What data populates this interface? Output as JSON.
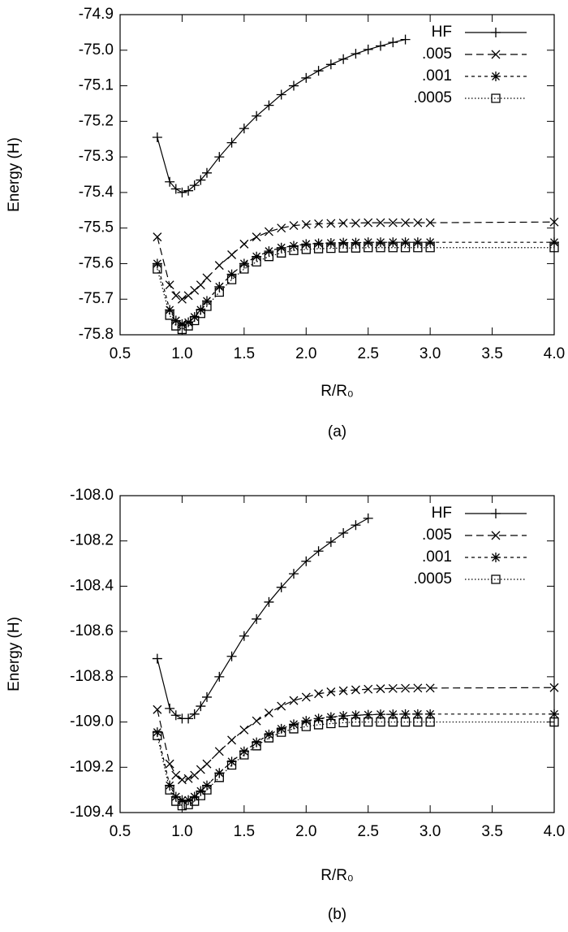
{
  "chart_data": [
    {
      "type": "line",
      "caption": "(a)",
      "xlabel": "R/R₀",
      "ylabel": "Energy (H)",
      "xlim": [
        0.5,
        4.0
      ],
      "xticks": [
        0.5,
        {
          "value": 1,
          "label": "1.0"
        },
        1.5,
        {
          "value": 2,
          "label": "2.0"
        },
        2.5,
        {
          "value": 3,
          "label": "3.0"
        },
        3.5,
        {
          "value": 4,
          "label": "4.0"
        }
      ],
      "ylim": [
        -75.8,
        -74.9
      ],
      "yticks": [
        -75.8,
        -75.7,
        -75.6,
        -75.5,
        -75.4,
        -75.3,
        -75.2,
        -75.1,
        {
          "value": -75,
          "label": "-75.0"
        },
        -74.9
      ],
      "legend": "upper right",
      "series": [
        {
          "name": "HF",
          "color": "#000000",
          "dash": "solid",
          "marker": "plus",
          "x": [
            0.8,
            0.9,
            0.95,
            1.0,
            1.05,
            1.1,
            1.15,
            1.2,
            1.3,
            1.4,
            1.5,
            1.6,
            1.7,
            1.8,
            1.9,
            2.0,
            2.1,
            2.2,
            2.3,
            2.4,
            2.5,
            2.6,
            2.7,
            2.8
          ],
          "values": [
            -75.245,
            -75.37,
            -75.39,
            -75.4,
            -75.395,
            -75.38,
            -75.365,
            -75.345,
            -75.3,
            -75.26,
            -75.22,
            -75.185,
            -75.155,
            -75.125,
            -75.1,
            -75.078,
            -75.058,
            -75.04,
            -75.025,
            -75.01,
            -74.998,
            -74.988,
            -74.978,
            -74.97
          ]
        },
        {
          "name": ".005",
          "color": "#000000",
          "dash": "dashed",
          "marker": "cross",
          "x": [
            0.8,
            0.9,
            0.95,
            1.0,
            1.05,
            1.1,
            1.15,
            1.2,
            1.3,
            1.4,
            1.5,
            1.6,
            1.7,
            1.8,
            1.9,
            2.0,
            2.1,
            2.2,
            2.3,
            2.4,
            2.5,
            2.6,
            2.7,
            2.8,
            2.9,
            3.0,
            4.0
          ],
          "values": [
            -75.525,
            -75.66,
            -75.69,
            -75.7,
            -75.69,
            -75.675,
            -75.66,
            -75.64,
            -75.605,
            -75.575,
            -75.545,
            -75.525,
            -75.51,
            -75.5,
            -75.493,
            -75.49,
            -75.488,
            -75.487,
            -75.486,
            -75.486,
            -75.485,
            -75.485,
            -75.485,
            -75.485,
            -75.485,
            -75.485,
            -75.483
          ]
        },
        {
          "name": ".001",
          "color": "#000000",
          "dash": "short-dashed",
          "marker": "star",
          "x": [
            0.8,
            0.9,
            0.95,
            1.0,
            1.05,
            1.1,
            1.15,
            1.2,
            1.3,
            1.4,
            1.5,
            1.6,
            1.7,
            1.8,
            1.9,
            2.0,
            2.1,
            2.2,
            2.3,
            2.4,
            2.5,
            2.6,
            2.7,
            2.8,
            2.9,
            3.0,
            4.0
          ],
          "values": [
            -75.6,
            -75.73,
            -75.76,
            -75.77,
            -75.765,
            -75.75,
            -75.73,
            -75.705,
            -75.665,
            -75.63,
            -75.6,
            -75.58,
            -75.565,
            -75.555,
            -75.55,
            -75.545,
            -75.543,
            -75.542,
            -75.541,
            -75.541,
            -75.54,
            -75.54,
            -75.54,
            -75.54,
            -75.54,
            -75.54,
            -75.54
          ]
        },
        {
          "name": ".0005",
          "color": "#000000",
          "dash": "dotted",
          "marker": "square",
          "x": [
            0.8,
            0.9,
            0.95,
            1.0,
            1.05,
            1.1,
            1.15,
            1.2,
            1.3,
            1.4,
            1.5,
            1.6,
            1.7,
            1.8,
            1.9,
            2.0,
            2.1,
            2.2,
            2.3,
            2.4,
            2.5,
            2.6,
            2.7,
            2.8,
            2.9,
            3.0,
            4.0
          ],
          "values": [
            -75.615,
            -75.745,
            -75.775,
            -75.785,
            -75.775,
            -75.76,
            -75.74,
            -75.72,
            -75.68,
            -75.645,
            -75.615,
            -75.595,
            -75.58,
            -75.57,
            -75.563,
            -75.56,
            -75.558,
            -75.557,
            -75.556,
            -75.556,
            -75.555,
            -75.555,
            -75.555,
            -75.555,
            -75.555,
            -75.555,
            -75.555
          ]
        }
      ]
    },
    {
      "type": "line",
      "caption": "(b)",
      "xlabel": "R/R₀",
      "ylabel": "Energy (H)",
      "xlim": [
        0.5,
        4.0
      ],
      "xticks": [
        0.5,
        {
          "value": 1,
          "label": "1.0"
        },
        1.5,
        {
          "value": 2,
          "label": "2.0"
        },
        2.5,
        {
          "value": 3,
          "label": "3.0"
        },
        3.5,
        {
          "value": 4,
          "label": "4.0"
        }
      ],
      "ylim": [
        -109.4,
        -108.0
      ],
      "yticks": [
        -109.4,
        -109.2,
        {
          "value": -109,
          "label": "-109.0"
        },
        -108.8,
        -108.6,
        -108.4,
        -108.2,
        {
          "value": -108,
          "label": "-108.0"
        }
      ],
      "legend": "upper right",
      "series": [
        {
          "name": "HF",
          "color": "#000000",
          "dash": "solid",
          "marker": "plus",
          "x": [
            0.8,
            0.9,
            0.95,
            1.0,
            1.05,
            1.1,
            1.15,
            1.2,
            1.3,
            1.4,
            1.5,
            1.6,
            1.7,
            1.8,
            1.9,
            2.0,
            2.1,
            2.2,
            2.3,
            2.4,
            2.5
          ],
          "values": [
            -108.72,
            -108.94,
            -108.97,
            -108.985,
            -108.985,
            -108.965,
            -108.93,
            -108.89,
            -108.8,
            -108.71,
            -108.62,
            -108.545,
            -108.47,
            -108.405,
            -108.345,
            -108.29,
            -108.245,
            -108.205,
            -108.165,
            -108.13,
            -108.1
          ]
        },
        {
          "name": ".005",
          "color": "#000000",
          "dash": "dashed",
          "marker": "cross",
          "x": [
            0.8,
            0.9,
            0.95,
            1.0,
            1.05,
            1.1,
            1.15,
            1.2,
            1.3,
            1.4,
            1.5,
            1.6,
            1.7,
            1.8,
            1.9,
            2.0,
            2.1,
            2.2,
            2.3,
            2.4,
            2.5,
            2.6,
            2.7,
            2.8,
            2.9,
            3.0,
            4.0
          ],
          "values": [
            -108.945,
            -109.185,
            -109.235,
            -109.255,
            -109.25,
            -109.235,
            -109.21,
            -109.185,
            -109.13,
            -109.08,
            -109.035,
            -108.995,
            -108.96,
            -108.93,
            -108.905,
            -108.89,
            -108.875,
            -108.867,
            -108.862,
            -108.858,
            -108.855,
            -108.853,
            -108.852,
            -108.851,
            -108.85,
            -108.85,
            -108.848
          ]
        },
        {
          "name": ".001",
          "color": "#000000",
          "dash": "short-dashed",
          "marker": "star",
          "x": [
            0.8,
            0.9,
            0.95,
            1.0,
            1.05,
            1.1,
            1.15,
            1.2,
            1.3,
            1.4,
            1.5,
            1.6,
            1.7,
            1.8,
            1.9,
            2.0,
            2.1,
            2.2,
            2.3,
            2.4,
            2.5,
            2.6,
            2.7,
            2.8,
            2.9,
            3.0,
            4.0
          ],
          "values": [
            -109.045,
            -109.28,
            -109.33,
            -109.345,
            -109.345,
            -109.33,
            -109.305,
            -109.28,
            -109.225,
            -109.175,
            -109.13,
            -109.09,
            -109.055,
            -109.03,
            -109.01,
            -108.995,
            -108.985,
            -108.978,
            -108.973,
            -108.97,
            -108.968,
            -108.966,
            -108.966,
            -108.965,
            -108.965,
            -108.965,
            -108.965
          ]
        },
        {
          "name": ".0005",
          "color": "#000000",
          "dash": "dotted",
          "marker": "square",
          "x": [
            0.8,
            0.9,
            0.95,
            1.0,
            1.05,
            1.1,
            1.15,
            1.2,
            1.3,
            1.4,
            1.5,
            1.6,
            1.7,
            1.8,
            1.9,
            2.0,
            2.1,
            2.2,
            2.3,
            2.4,
            2.5,
            2.6,
            2.7,
            2.8,
            2.9,
            3.0,
            4.0
          ],
          "values": [
            -109.06,
            -109.3,
            -109.35,
            -109.37,
            -109.365,
            -109.35,
            -109.325,
            -109.3,
            -109.245,
            -109.19,
            -109.145,
            -109.105,
            -109.07,
            -109.045,
            -109.03,
            -109.02,
            -109.012,
            -109.007,
            -109.003,
            -109.0,
            -109.0,
            -109.0,
            -109.0,
            -109.0,
            -109.0,
            -109.0,
            -109.0
          ]
        }
      ]
    }
  ]
}
